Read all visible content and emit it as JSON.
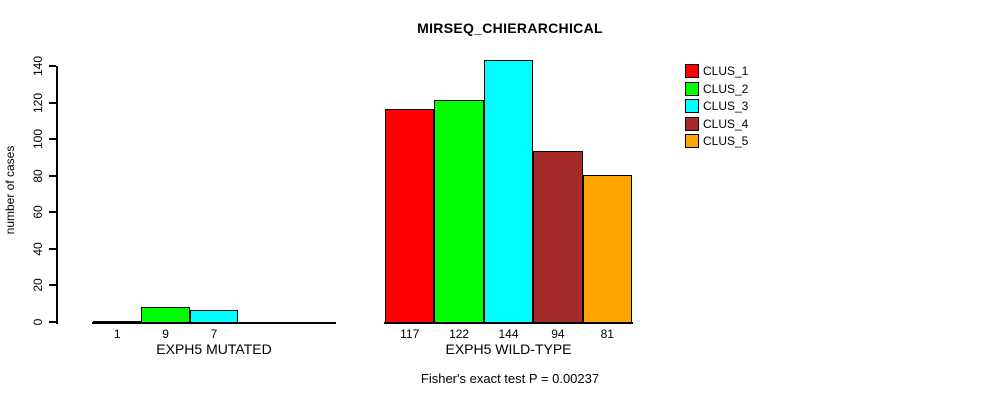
{
  "title": "MIRSEQ_CHIERARCHICAL",
  "footer": "Fisher's exact test P = 0.00237",
  "chart_data": {
    "type": "bar",
    "title": "MIRSEQ_CHIERARCHICAL",
    "ylabel": "number of cases",
    "xlabel": "",
    "ylim": [
      0,
      140
    ],
    "yticks": [
      0,
      20,
      40,
      60,
      80,
      100,
      120,
      140
    ],
    "grid": false,
    "legend_position": "right",
    "categories": [
      "EXPH5 MUTATED",
      "EXPH5 WILD-TYPE"
    ],
    "series": [
      {
        "name": "CLUS_1",
        "color": "#ff0000",
        "values": [
          1,
          117
        ]
      },
      {
        "name": "CLUS_2",
        "color": "#00ff00",
        "values": [
          9,
          122
        ]
      },
      {
        "name": "CLUS_3",
        "color": "#00ffff",
        "values": [
          7,
          144
        ]
      },
      {
        "name": "CLUS_4",
        "color": "#a52a2a",
        "values": [
          null,
          94
        ]
      },
      {
        "name": "CLUS_5",
        "color": "#ffa500",
        "values": [
          null,
          81
        ]
      }
    ],
    "annotation": "Fisher's exact test P = 0.00237"
  }
}
